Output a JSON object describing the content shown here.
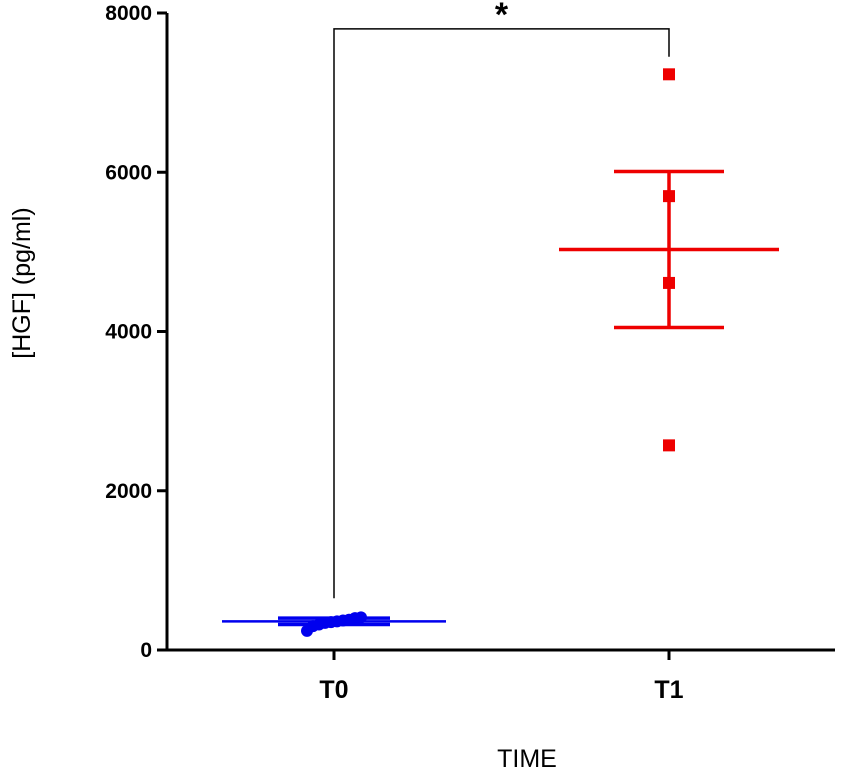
{
  "chart_data": {
    "type": "scatter",
    "title": "",
    "xlabel": "TIME",
    "ylabel": "[HGF] (pg/ml)",
    "ylim": [
      0,
      8000
    ],
    "yticks": [
      0,
      2000,
      4000,
      6000,
      8000
    ],
    "ytick_labels": [
      "0",
      "2000",
      "4000",
      "6000",
      "8000"
    ],
    "categories": [
      "T0",
      "T1"
    ],
    "grid": false,
    "legend": "none",
    "series": [
      {
        "category": "T0",
        "color": "#0000ee",
        "marker": "circle",
        "points": [
          240,
          300,
          320,
          340,
          350,
          360,
          370,
          380,
          400,
          410
        ],
        "mean": 360,
        "sem_low": 320,
        "sem_high": 400
      },
      {
        "category": "T1",
        "color": "#ee0000",
        "marker": "square",
        "points": [
          2570,
          4610,
          5700,
          7230
        ],
        "mean": 5030,
        "sem_low": 4050,
        "sem_high": 6010
      }
    ],
    "annotations": [
      {
        "type": "significance-bracket",
        "from": "T0",
        "to": "T1",
        "label": "*",
        "y_start_left": 650,
        "y_start_right": 7450,
        "y_top": 7800
      }
    ]
  }
}
